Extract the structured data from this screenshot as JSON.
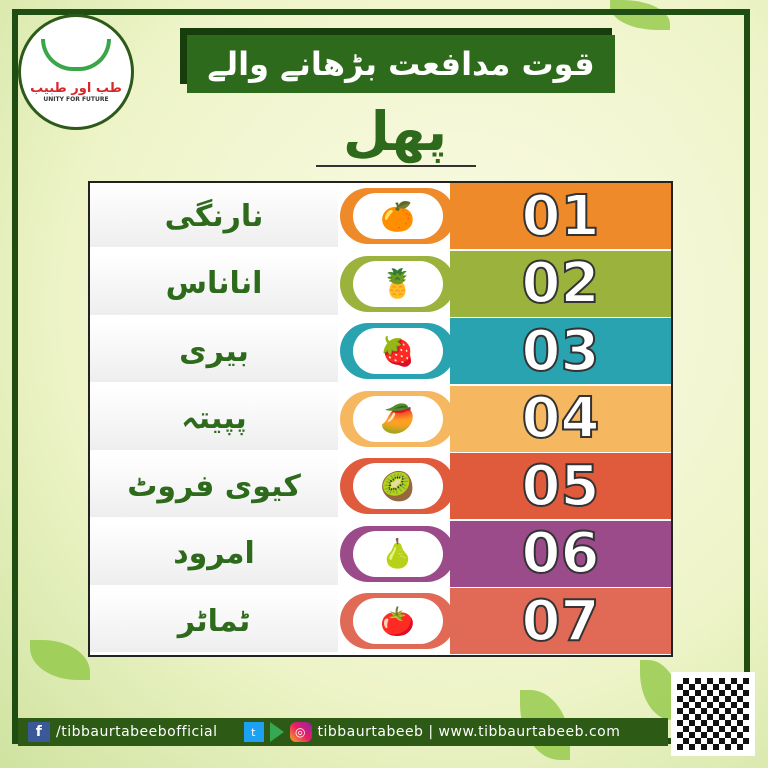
{
  "header": {
    "title": "قوت مدافعت بڑھانے والے",
    "subtitle": "پھل"
  },
  "logo": {
    "urdu": "طب اور طبیب",
    "tagline": "UNITY FOR FUTURE"
  },
  "rows": [
    {
      "name": "نارنگی",
      "number": "01",
      "color": "#ee8a2a",
      "icon": "🍊",
      "icon_name": "orange-icon"
    },
    {
      "name": "اناناس",
      "number": "02",
      "color": "#9bb23c",
      "icon": "🍍",
      "icon_name": "pineapple-icon"
    },
    {
      "name": "بیری",
      "number": "03",
      "color": "#2aa3b0",
      "icon": "🍓",
      "icon_name": "berries-icon"
    },
    {
      "name": "پپیتہ",
      "number": "04",
      "color": "#f5b860",
      "icon": "🥭",
      "icon_name": "papaya-icon"
    },
    {
      "name": "کیوی فروٹ",
      "number": "05",
      "color": "#e05a3c",
      "icon": "🥝",
      "icon_name": "kiwi-icon"
    },
    {
      "name": "امرود",
      "number": "06",
      "color": "#9b4a8a",
      "icon": "🍐",
      "icon_name": "guava-icon"
    },
    {
      "name": "ٹماٹر",
      "number": "07",
      "color": "#e06a55",
      "icon": "🍅",
      "icon_name": "tomato-icon"
    }
  ],
  "footer": {
    "facebook": "/tibbaurtabeebofficial",
    "instagram": "tibbaurtabeeb | www.tibbaurtabeeb.com"
  }
}
